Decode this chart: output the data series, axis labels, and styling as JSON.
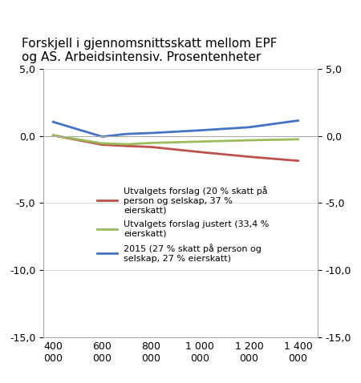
{
  "title": "Forskjell i gjennomsnittsskatt mellom EPF\nog AS. Arbeidsintensiv. Prosentenheter",
  "x_values": [
    400000,
    600000,
    700000,
    800000,
    1000000,
    1200000,
    1400000
  ],
  "x_ticks": [
    400000,
    600000,
    800000,
    1000000,
    1200000,
    1400000
  ],
  "x_labels": [
    "400\n000",
    "600\n000",
    "800\n000",
    "1 000\n000",
    "1 200\n000",
    "1 400\n000"
  ],
  "series": [
    {
      "key": "red",
      "label": "Utvalgets forslag (20 % skatt på\nperson og selskap, 37 %\neierskatt)",
      "color": "#c0504d",
      "values": [
        0.05,
        -0.65,
        -0.75,
        -0.82,
        -1.2,
        -1.55,
        -1.85
      ]
    },
    {
      "key": "green",
      "label": "Utvalgets forslag justert (33,4 %\neierskatt)",
      "color": "#9bbb59",
      "values": [
        0.05,
        -0.55,
        -0.62,
        -0.52,
        -0.42,
        -0.32,
        -0.25
      ]
    },
    {
      "key": "blue",
      "label": "2015 (27 % skatt på person og\nselskap, 27 % eierskatt)",
      "color": "#4472c4",
      "values": [
        1.05,
        -0.05,
        0.15,
        0.22,
        0.42,
        0.65,
        1.15
      ]
    }
  ],
  "ylim": [
    -15.0,
    5.0
  ],
  "yticks": [
    -15.0,
    -10.0,
    -5.0,
    0.0,
    5.0
  ]
}
